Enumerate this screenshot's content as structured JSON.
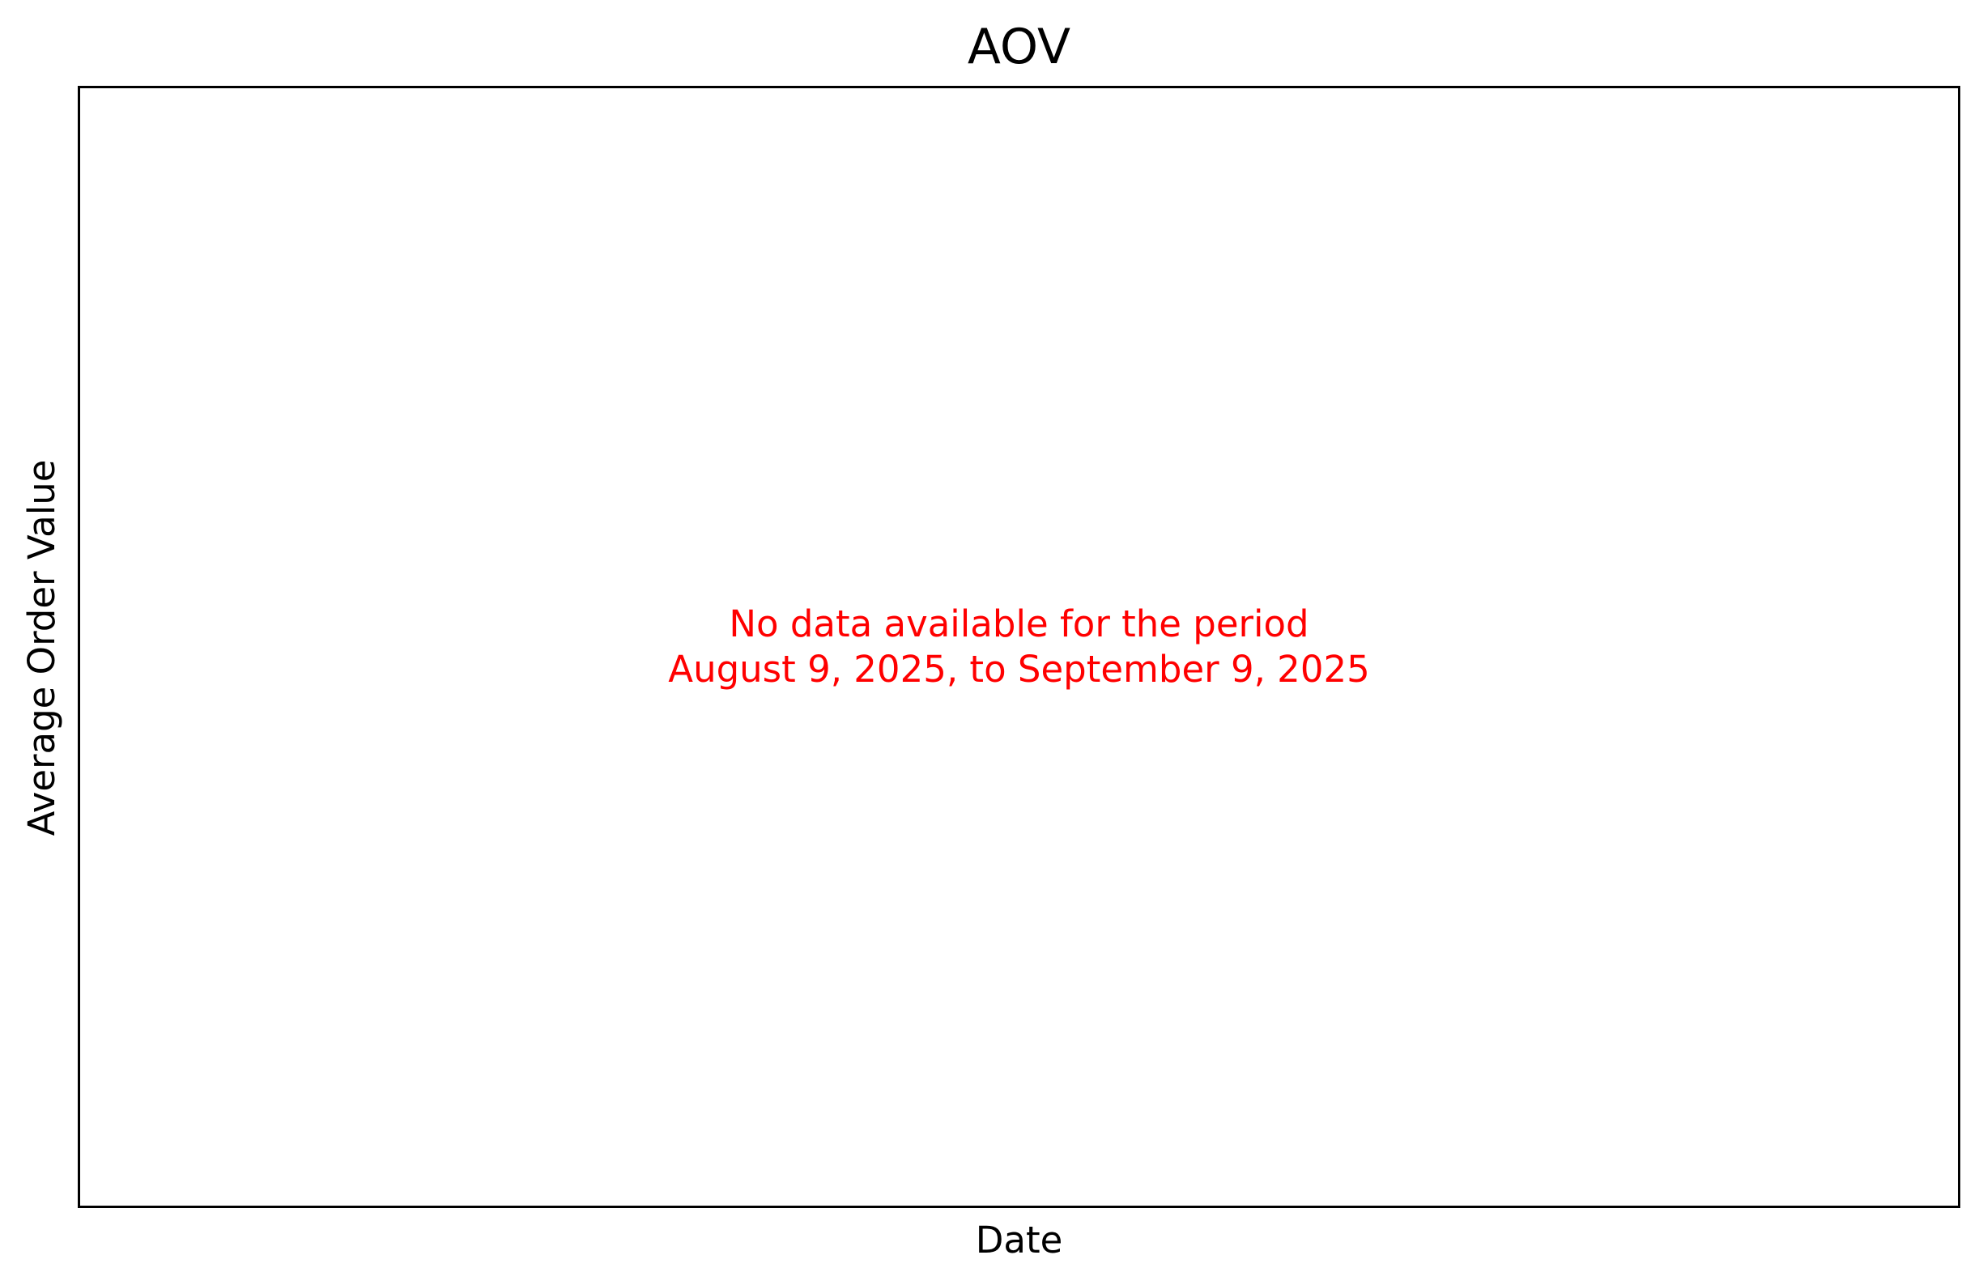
{
  "chart_data": {
    "type": "line",
    "title": "AOV",
    "xlabel": "Date",
    "ylabel": "Average Order Value",
    "x": [],
    "series": [],
    "grid": false,
    "annotations": [
      {
        "lines": [
          "No data available for the period",
          "August 9, 2025, to September 9, 2025"
        ],
        "color": "#ff0000",
        "placement": "center"
      }
    ]
  },
  "colors": {
    "axes": "#000000",
    "annotation": "#ff0000",
    "background": "#ffffff"
  }
}
